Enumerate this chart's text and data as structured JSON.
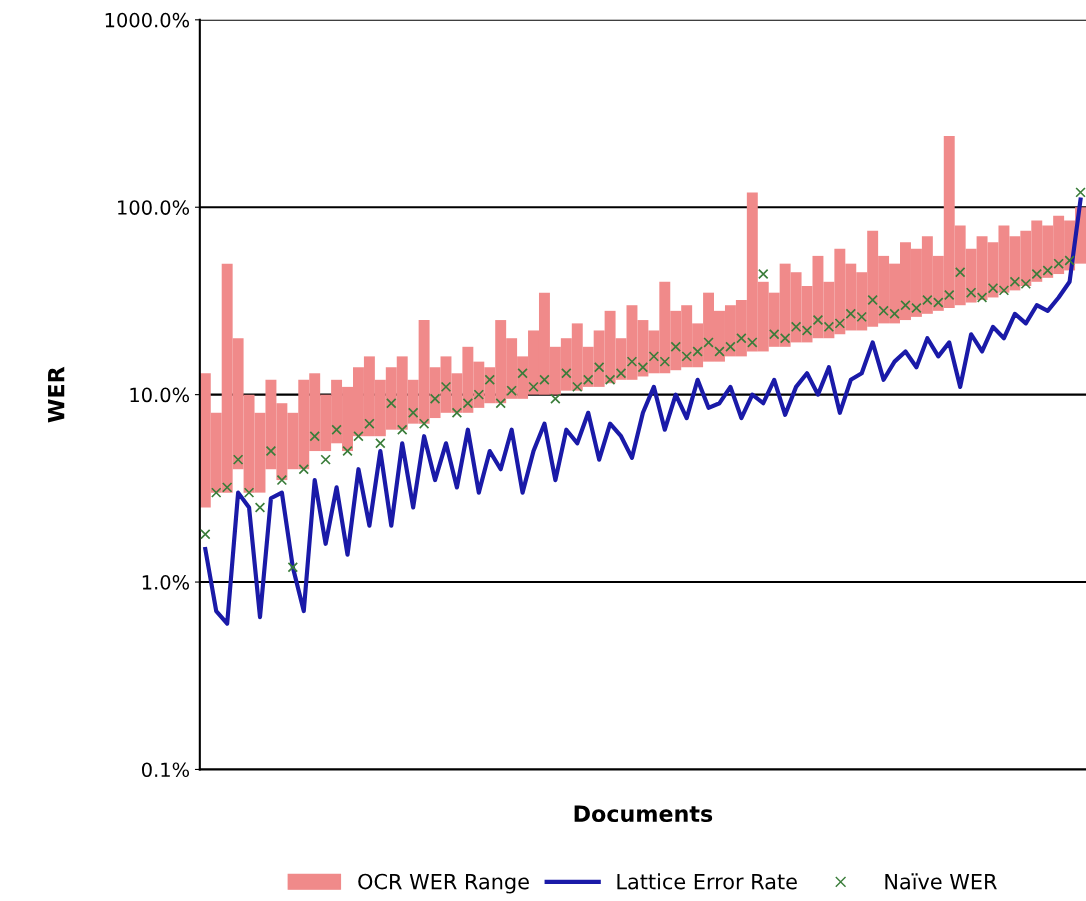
{
  "chart_data": {
    "type": "bar",
    "xlabel": "Documents",
    "ylabel": "WER",
    "categories": [
      null,
      null,
      null,
      null,
      null,
      null,
      null,
      null,
      null,
      null,
      null,
      null,
      null,
      null,
      null,
      null,
      null,
      null,
      null,
      null,
      null,
      null,
      null,
      null,
      null,
      null,
      null,
      null,
      null,
      null,
      null,
      null,
      null,
      null,
      null,
      null,
      null,
      null,
      null,
      null,
      null,
      null,
      null,
      null,
      null,
      null,
      null,
      null,
      null,
      null,
      null,
      null,
      null,
      null,
      null,
      null,
      null,
      null,
      null,
      null,
      null,
      null,
      null,
      null,
      null,
      null,
      null,
      null,
      null,
      null,
      null,
      null,
      null,
      null,
      null,
      null,
      null,
      null,
      null,
      null,
      null
    ],
    "series": [
      {
        "name": "OCR WER Range",
        "color": "#f08a8a",
        "base": [
          2.5,
          3.0,
          3.0,
          4.0,
          3.0,
          3.0,
          4.0,
          3.5,
          4.0,
          4.0,
          5,
          5,
          5.5,
          5,
          6,
          6,
          6,
          6.5,
          6.5,
          7,
          7,
          7.5,
          8,
          8,
          8,
          8.5,
          9,
          9,
          9.5,
          9.5,
          10,
          10,
          10,
          10.5,
          10.5,
          11,
          11,
          11.5,
          12,
          12,
          12.5,
          13,
          13,
          13.5,
          14,
          14,
          15,
          15,
          16,
          16,
          17,
          17,
          18,
          18,
          19,
          19,
          20,
          20,
          21,
          22,
          22,
          23,
          24,
          24,
          25,
          26,
          27,
          28,
          29,
          30,
          31,
          32,
          33,
          35,
          36,
          38,
          40,
          42,
          44,
          46,
          50
        ],
        "values": [
          10.5,
          5,
          47,
          16,
          7,
          5,
          8,
          5.5,
          4,
          8,
          8,
          5,
          6.5,
          6,
          8,
          10,
          6,
          7.5,
          9.5,
          5,
          18,
          6.5,
          8,
          5,
          10,
          6.5,
          5,
          16,
          10.5,
          6.5,
          12,
          25,
          8,
          9.5,
          13.5,
          7,
          11,
          16.5,
          8,
          18,
          12.5,
          9,
          27,
          14.5,
          16,
          10,
          20,
          13,
          14,
          16,
          103,
          23,
          17,
          32,
          26,
          19,
          35,
          20,
          39,
          28,
          23,
          52,
          31,
          26,
          40,
          34,
          43,
          27,
          211,
          50,
          29,
          38,
          32,
          45,
          34,
          37,
          45,
          38,
          46,
          39,
          50
        ]
      },
      {
        "name": "Lattice Error Rate",
        "type": "line",
        "color": "#1a1aa8",
        "marker": "none",
        "line_style": "solid",
        "values": [
          1.5,
          0.7,
          0.6,
          3.0,
          2.5,
          0.65,
          2.8,
          3.0,
          1.2,
          0.7,
          3.5,
          1.6,
          3.2,
          1.4,
          4.0,
          2.0,
          5.0,
          2.0,
          5.5,
          2.5,
          6.0,
          3.5,
          5.5,
          3.2,
          6.5,
          3.0,
          5.0,
          4.0,
          6.5,
          3.0,
          5.0,
          7.0,
          3.5,
          6.5,
          5.5,
          8.0,
          4.5,
          7.0,
          6.0,
          4.6,
          8.0,
          11,
          6.5,
          10,
          7.5,
          12,
          8.5,
          9.0,
          11,
          7.5,
          10,
          9.0,
          12,
          7.8,
          11,
          13,
          10,
          14,
          8.0,
          12,
          13,
          19,
          12,
          15,
          17,
          14,
          20,
          16,
          19,
          11,
          21,
          17,
          23,
          20,
          27,
          24,
          30,
          28,
          33,
          40,
          110
        ]
      },
      {
        "name": "Naïve WER",
        "type": "scatter",
        "color": "#3a7d3a",
        "marker": "cross",
        "values": [
          1.8,
          3.0,
          3.2,
          4.5,
          3.0,
          2.5,
          5.0,
          3.5,
          1.2,
          4.0,
          6.0,
          4.5,
          6.5,
          5.0,
          6.0,
          7.0,
          5.5,
          9.0,
          6.5,
          8.0,
          7.0,
          9.5,
          11,
          8.0,
          9.0,
          10,
          12,
          9.0,
          10.5,
          13,
          11,
          12,
          9.5,
          13,
          11,
          12,
          14,
          12,
          13,
          15,
          14,
          16,
          15,
          18,
          16,
          17,
          19,
          17,
          18,
          20,
          19,
          44,
          21,
          20,
          23,
          22,
          25,
          23,
          24,
          27,
          26,
          32,
          28,
          27,
          30,
          29,
          32,
          31,
          34,
          45,
          35,
          33,
          37,
          36,
          40,
          39,
          44,
          46,
          50,
          52,
          120
        ]
      }
    ],
    "log": "y",
    "ylim": [
      0.1,
      1000
    ],
    "yticks": [
      {
        "value": 0.1,
        "label": "0.1%"
      },
      {
        "value": 1,
        "label": "1.0%"
      },
      {
        "value": 10,
        "label": "10.0%"
      },
      {
        "value": 100,
        "label": "100.0%"
      },
      {
        "value": 1000,
        "label": "1000.0%"
      }
    ],
    "grid": "y",
    "legend": "bottom"
  }
}
